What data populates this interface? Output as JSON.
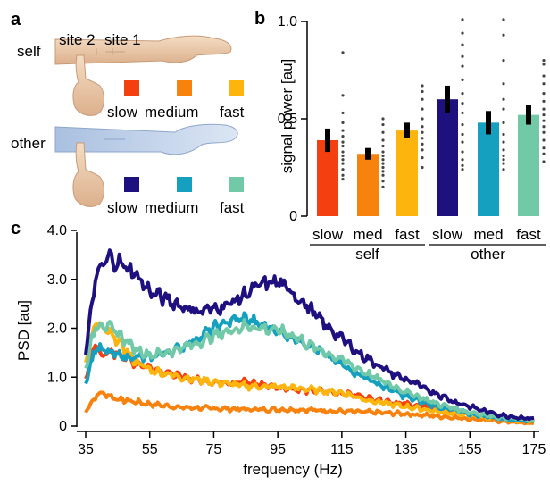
{
  "panel_a": {
    "letter": "a",
    "self_label": "self",
    "other_label": "other",
    "site2_label": "site 2",
    "site1_label": "site 1",
    "self_conditions": [
      {
        "label": "slow",
        "color": "#f43f10"
      },
      {
        "label": "medium",
        "color": "#f7820e"
      },
      {
        "label": "fast",
        "color": "#fdb50d"
      }
    ],
    "other_conditions": [
      {
        "label": "slow",
        "color": "#1f1080"
      },
      {
        "label": "medium",
        "color": "#15a0bf"
      },
      {
        "label": "fast",
        "color": "#72c9a8"
      }
    ]
  },
  "chart_data": [
    {
      "panel": "b",
      "type": "bar",
      "ylabel": "signal power [au]",
      "ylim": [
        0,
        1.0
      ],
      "yticks": [
        "0",
        "0.5",
        "1.0"
      ],
      "categories": [
        "slow",
        "med",
        "fast",
        "slow",
        "med",
        "fast"
      ],
      "groups": [
        {
          "label": "self",
          "span": [
            0,
            2
          ]
        },
        {
          "label": "other",
          "span": [
            3,
            5
          ]
        }
      ],
      "values": [
        0.39,
        0.32,
        0.44,
        0.6,
        0.48,
        0.52
      ],
      "errors": [
        0.06,
        0.03,
        0.04,
        0.07,
        0.06,
        0.05
      ],
      "colors": [
        "#f43f10",
        "#f7820e",
        "#fdb50d",
        "#1f1080",
        "#15a0bf",
        "#72c9a8"
      ],
      "points": [
        [
          0.19,
          0.21,
          0.24,
          0.27,
          0.29,
          0.31,
          0.33,
          0.36,
          0.38,
          0.41,
          0.44,
          0.48,
          0.53,
          0.62,
          0.84
        ],
        [
          0.15,
          0.18,
          0.21,
          0.23,
          0.25,
          0.27,
          0.29,
          0.31,
          0.33,
          0.36,
          0.39,
          0.43,
          0.47,
          0.5
        ],
        [
          0.25,
          0.3,
          0.34,
          0.37,
          0.4,
          0.43,
          0.46,
          0.5,
          0.55,
          0.6,
          0.64,
          0.67
        ],
        [
          0.24,
          0.26,
          0.29,
          0.33,
          0.38,
          0.42,
          0.47,
          0.53,
          0.58,
          0.63,
          0.7,
          0.77,
          0.82,
          0.88,
          0.94,
          1.01
        ],
        [
          0.24,
          0.27,
          0.29,
          0.31,
          0.34,
          0.38,
          0.42,
          0.48,
          0.55,
          0.6,
          0.68,
          0.8,
          0.93,
          1.01
        ],
        [
          0.28,
          0.32,
          0.35,
          0.39,
          0.43,
          0.46,
          0.49,
          0.52,
          0.55,
          0.59,
          0.63,
          0.68,
          0.72,
          0.78,
          0.8
        ]
      ]
    },
    {
      "panel": "c",
      "type": "line",
      "xlabel": "frequency (Hz)",
      "ylabel": "PSD [au]",
      "xlim": [
        33,
        177
      ],
      "ylim": [
        0,
        4.0
      ],
      "xticks": [
        35,
        55,
        75,
        95,
        115,
        135,
        155,
        175
      ],
      "yticks": [
        "0",
        "1.0",
        "2.0",
        "3.0",
        "4.0"
      ],
      "series": [
        {
          "color": "#f7820e",
          "x": [
            35,
            38,
            40,
            45,
            55,
            65,
            75,
            85,
            95,
            105,
            115,
            125,
            135,
            145,
            155,
            165,
            175
          ],
          "y": [
            0.3,
            0.6,
            0.68,
            0.55,
            0.45,
            0.38,
            0.36,
            0.34,
            0.34,
            0.33,
            0.3,
            0.28,
            0.25,
            0.2,
            0.15,
            0.1,
            0.05
          ]
        },
        {
          "color": "#f43f10",
          "x": [
            35,
            38,
            40,
            45,
            50,
            55,
            65,
            75,
            85,
            95,
            105,
            115,
            125,
            135,
            145,
            155,
            165,
            175
          ],
          "y": [
            1.0,
            1.7,
            1.45,
            1.5,
            1.3,
            1.2,
            1.0,
            0.9,
            0.9,
            0.8,
            0.72,
            0.68,
            0.55,
            0.45,
            0.35,
            0.25,
            0.18,
            0.12
          ]
        },
        {
          "color": "#fdb50d",
          "x": [
            35,
            38,
            40,
            45,
            50,
            55,
            65,
            75,
            85,
            95,
            105,
            115,
            125,
            135,
            145,
            155,
            165,
            175
          ],
          "y": [
            1.4,
            2.1,
            2.0,
            1.75,
            1.35,
            1.15,
            1.0,
            0.9,
            0.82,
            0.8,
            0.75,
            0.68,
            0.5,
            0.4,
            0.3,
            0.22,
            0.15,
            0.1
          ]
        },
        {
          "color": "#15a0bf",
          "x": [
            35,
            38,
            40,
            45,
            50,
            55,
            60,
            65,
            70,
            75,
            80,
            85,
            90,
            95,
            100,
            105,
            110,
            115,
            125,
            135,
            145,
            155,
            165,
            175
          ],
          "y": [
            0.9,
            1.6,
            1.55,
            1.45,
            1.4,
            1.4,
            1.5,
            1.6,
            1.8,
            2.0,
            2.15,
            2.2,
            2.05,
            1.95,
            1.8,
            1.65,
            1.45,
            1.25,
            0.9,
            0.6,
            0.4,
            0.25,
            0.15,
            0.1
          ]
        },
        {
          "color": "#72c9a8",
          "x": [
            35,
            38,
            40,
            45,
            50,
            55,
            60,
            65,
            70,
            75,
            80,
            85,
            90,
            95,
            100,
            105,
            110,
            115,
            125,
            135,
            145,
            155,
            165,
            175
          ],
          "y": [
            1.2,
            2.05,
            2.1,
            1.9,
            1.6,
            1.45,
            1.5,
            1.6,
            1.7,
            1.85,
            1.95,
            2.05,
            2.0,
            1.95,
            1.85,
            1.65,
            1.5,
            1.35,
            1.0,
            0.7,
            0.45,
            0.28,
            0.18,
            0.12
          ]
        },
        {
          "color": "#1f1080",
          "x": [
            35,
            38,
            40,
            42,
            45,
            50,
            55,
            60,
            65,
            70,
            75,
            80,
            85,
            90,
            95,
            100,
            105,
            110,
            115,
            120,
            125,
            130,
            135,
            140,
            145,
            150,
            155,
            160,
            165,
            170,
            175
          ],
          "y": [
            1.5,
            3.0,
            3.25,
            3.45,
            3.35,
            3.15,
            2.75,
            2.6,
            2.45,
            2.35,
            2.4,
            2.5,
            2.7,
            2.9,
            2.95,
            2.7,
            2.4,
            2.05,
            1.8,
            1.5,
            1.3,
            1.1,
            0.95,
            0.8,
            0.65,
            0.5,
            0.4,
            0.3,
            0.22,
            0.18,
            0.15
          ]
        }
      ]
    }
  ]
}
